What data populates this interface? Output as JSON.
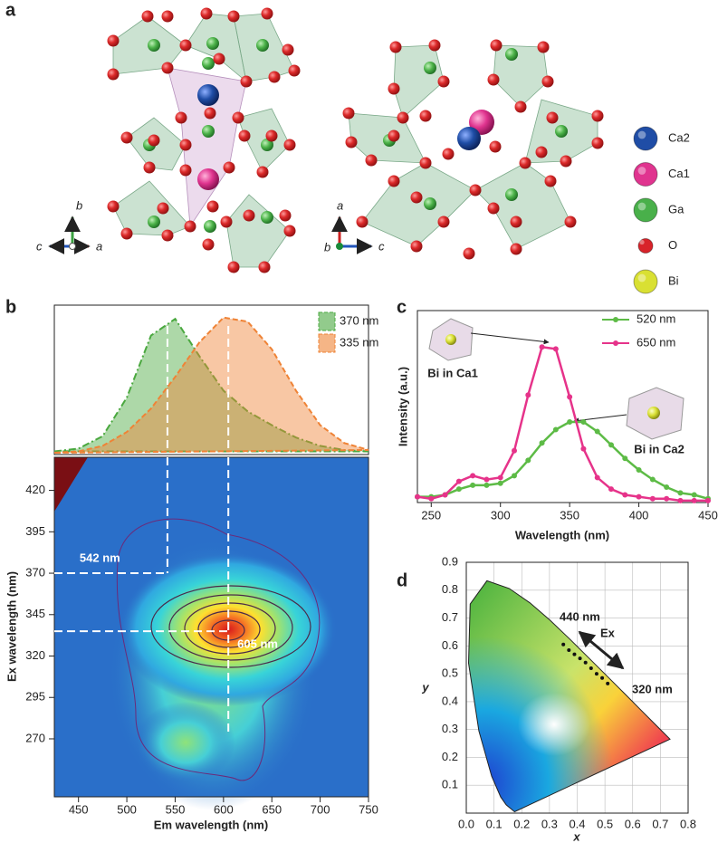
{
  "panel_labels": [
    "a",
    "b",
    "c",
    "d"
  ],
  "structure": {
    "legend": [
      {
        "name": "Ca2",
        "color": "#1f4da6"
      },
      {
        "name": "Ca1",
        "color": "#e0348f"
      },
      {
        "name": "Ga",
        "color": "#49b04a"
      },
      {
        "name": "O",
        "color": "#d8232a"
      },
      {
        "name": "Bi",
        "color": "#d9e033"
      }
    ],
    "axes_left": {
      "up": "b",
      "left": "c",
      "right": "a"
    },
    "axes_right": {
      "up": "a",
      "left": "b",
      "right": "c"
    }
  },
  "chart_data": [
    {
      "type": "area",
      "x": [
        425,
        450,
        475,
        500,
        525,
        550,
        575,
        600,
        625,
        650,
        675,
        700,
        725,
        750
      ],
      "xlim": [
        425,
        750
      ],
      "ylim": [
        0,
        1.05
      ],
      "series": [
        {
          "name": "370 nm",
          "color": "#4aa83f",
          "values": [
            0.01,
            0.03,
            0.12,
            0.4,
            0.85,
            0.97,
            0.7,
            0.45,
            0.3,
            0.2,
            0.11,
            0.05,
            0.02,
            0.01
          ]
        },
        {
          "name": "335 nm",
          "color": "#ef8336",
          "values": [
            0,
            0.01,
            0.05,
            0.15,
            0.32,
            0.55,
            0.8,
            0.98,
            0.95,
            0.75,
            0.45,
            0.2,
            0.07,
            0.02
          ]
        }
      ]
    },
    {
      "type": "contour",
      "xlabel": "Em wavelength (nm)",
      "ylabel": "Ex wavelength (nm)",
      "xlim": [
        425,
        750
      ],
      "ylim": [
        235,
        440
      ],
      "xticks": [
        450,
        500,
        550,
        600,
        650,
        700,
        750
      ],
      "yticks": [
        270,
        295,
        320,
        345,
        370,
        395,
        420
      ],
      "guides": [
        {
          "x": 542,
          "y": 370,
          "label": "542 nm"
        },
        {
          "x": 605,
          "y": 335,
          "label": "605 nm"
        }
      ]
    },
    {
      "type": "line",
      "xlabel": "Wavelength (nm)",
      "ylabel": "Intensity (a.u.)",
      "x": [
        240,
        250,
        260,
        270,
        280,
        290,
        300,
        310,
        320,
        330,
        340,
        350,
        360,
        370,
        380,
        390,
        400,
        410,
        420,
        430,
        440,
        450
      ],
      "xlim": [
        240,
        450
      ],
      "ylim": [
        0,
        1
      ],
      "xticks": [
        250,
        300,
        350,
        400,
        450
      ],
      "series": [
        {
          "name": "520 nm",
          "color": "#5dbb46",
          "values": [
            0.03,
            0.03,
            0.04,
            0.07,
            0.09,
            0.09,
            0.1,
            0.14,
            0.22,
            0.31,
            0.38,
            0.42,
            0.42,
            0.37,
            0.3,
            0.23,
            0.17,
            0.12,
            0.08,
            0.05,
            0.04,
            0.02
          ]
        },
        {
          "name": "650 nm",
          "color": "#e6338a",
          "values": [
            0.03,
            0.02,
            0.04,
            0.11,
            0.14,
            0.12,
            0.13,
            0.27,
            0.56,
            0.81,
            0.8,
            0.55,
            0.28,
            0.13,
            0.07,
            0.04,
            0.03,
            0.02,
            0.02,
            0.01,
            0.01,
            0.01
          ]
        }
      ],
      "annotations": [
        "Bi in Ca1",
        "Bi in Ca2"
      ]
    },
    {
      "type": "scatter",
      "xlabel": "x",
      "ylabel": "y",
      "xlim": [
        0,
        0.8
      ],
      "ylim": [
        0,
        0.9
      ],
      "xticks": [
        {
          "value": 0,
          "label": "0.0"
        },
        0.1,
        0.2,
        0.3,
        0.4,
        0.5,
        0.6,
        0.7,
        0.8
      ],
      "yticks": [
        0.1,
        0.2,
        0.3,
        0.4,
        0.5,
        0.6,
        0.7,
        0.8,
        0.9
      ],
      "grid": true,
      "color": "#111111",
      "x": [
        0.35,
        0.37,
        0.39,
        0.41,
        0.43,
        0.45,
        0.47,
        0.49,
        0.51
      ],
      "values": [
        0.605,
        0.585,
        0.57,
        0.555,
        0.54,
        0.52,
        0.5,
        0.485,
        0.465
      ],
      "annotations": [
        "440 nm",
        "Ex",
        "320 nm"
      ]
    }
  ]
}
